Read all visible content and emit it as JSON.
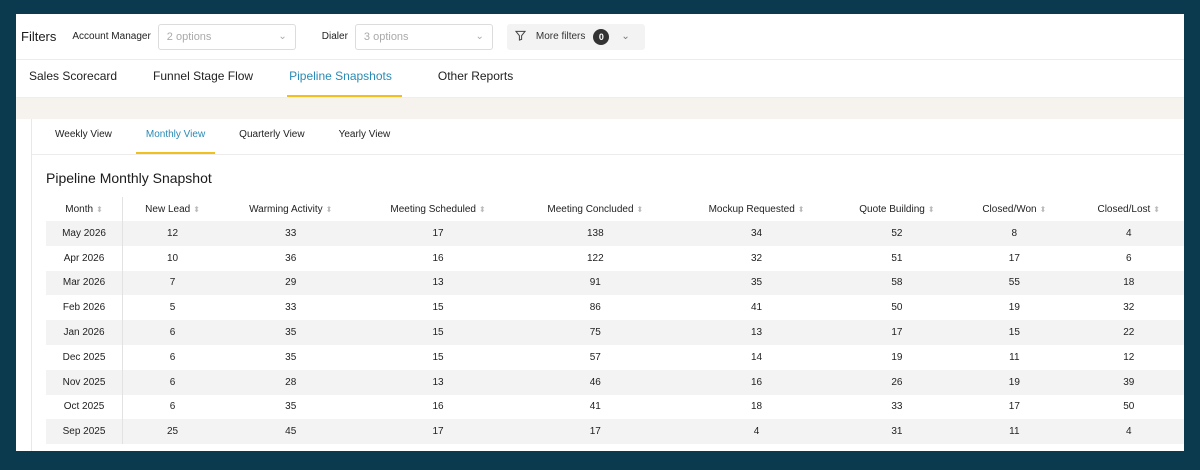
{
  "filters": {
    "title": "Filters",
    "account_manager": {
      "label": "Account Manager",
      "placeholder": "2 options"
    },
    "dialer": {
      "label": "Dialer",
      "placeholder": "3 options"
    },
    "more_filters": {
      "label": "More filters",
      "count": "0"
    }
  },
  "report_tabs": [
    "Sales Scorecard",
    "Funnel Stage Flow",
    "Pipeline Snapshots",
    "Other Reports"
  ],
  "active_report_tab": "Pipeline Snapshots",
  "view_tabs": [
    "Weekly View",
    "Monthly View",
    "Quarterly View",
    "Yearly View"
  ],
  "active_view_tab": "Monthly View",
  "snapshot_title": "Pipeline Monthly Snapshot",
  "table": {
    "columns": [
      "Month",
      "New Lead",
      "Warming Activity",
      "Meeting Scheduled",
      "Meeting Concluded",
      "Mockup Requested",
      "Quote Building",
      "Closed/Won",
      "Closed/Lost"
    ],
    "rows": [
      [
        "May 2026",
        "12",
        "33",
        "17",
        "138",
        "34",
        "52",
        "8",
        "4"
      ],
      [
        "Apr 2026",
        "10",
        "36",
        "16",
        "122",
        "32",
        "51",
        "17",
        "6"
      ],
      [
        "Mar 2026",
        "7",
        "29",
        "13",
        "91",
        "35",
        "58",
        "55",
        "18"
      ],
      [
        "Feb 2026",
        "5",
        "33",
        "15",
        "86",
        "41",
        "50",
        "19",
        "32"
      ],
      [
        "Jan 2026",
        "6",
        "35",
        "15",
        "75",
        "13",
        "17",
        "15",
        "22"
      ],
      [
        "Dec 2025",
        "6",
        "35",
        "15",
        "57",
        "14",
        "19",
        "11",
        "12"
      ],
      [
        "Nov 2025",
        "6",
        "28",
        "13",
        "46",
        "16",
        "26",
        "19",
        "39"
      ],
      [
        "Oct 2025",
        "6",
        "35",
        "16",
        "41",
        "18",
        "33",
        "17",
        "50"
      ],
      [
        "Sep 2025",
        "25",
        "45",
        "17",
        "17",
        "4",
        "31",
        "11",
        "4"
      ]
    ]
  },
  "icons": {
    "chevron": "chevron-down-icon",
    "filter": "funnel-filter-icon",
    "sort": "sort-icon"
  },
  "colors": {
    "background": "#0b3a4f",
    "accent_text": "#2a8ab5",
    "tab_underline": "#f0c020"
  }
}
